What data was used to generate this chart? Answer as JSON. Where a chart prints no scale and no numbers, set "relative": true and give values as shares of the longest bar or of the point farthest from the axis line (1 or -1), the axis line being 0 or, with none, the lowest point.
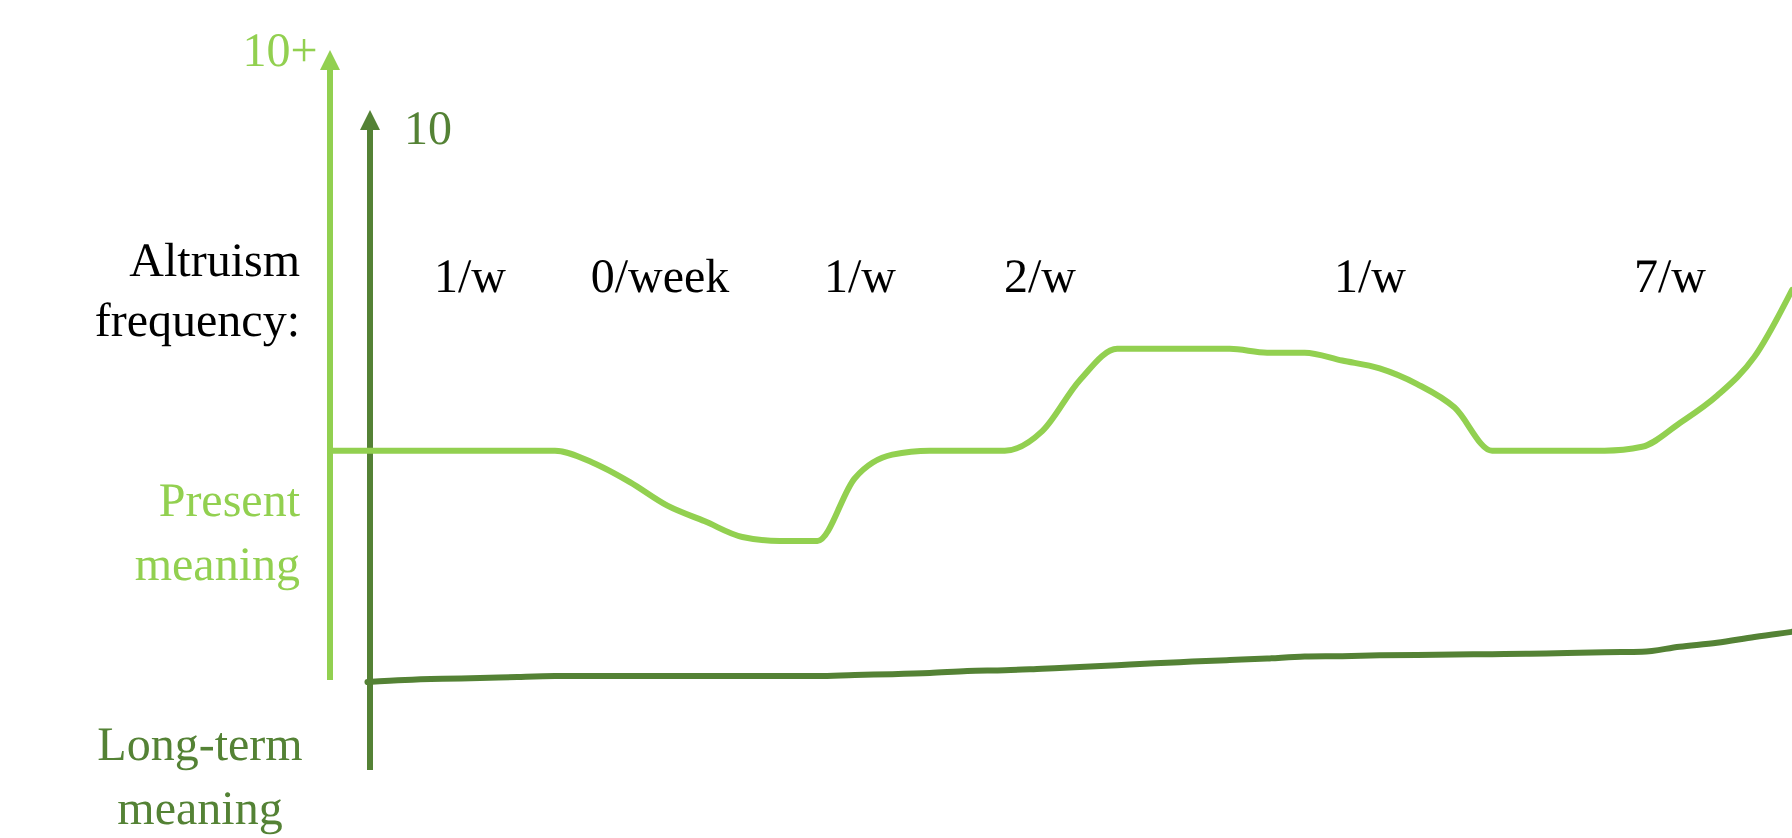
{
  "chart_data": {
    "type": "line",
    "relative": true,
    "categories": [
      null,
      null,
      null,
      null,
      null,
      null,
      null,
      null,
      null,
      null,
      null,
      null,
      null,
      null,
      null,
      null,
      null,
      null,
      null,
      null,
      null,
      null,
      null,
      null,
      null,
      null,
      null,
      null,
      null,
      null,
      null,
      null,
      null,
      null,
      null,
      null,
      null,
      null,
      null,
      null
    ],
    "series": [
      {
        "name": "Present meaning",
        "color": "#92d050",
        "values": [
          0.59,
          0.59,
          0.59,
          0.59,
          0.59,
          0.59,
          0.59,
          0.56,
          0.51,
          0.45,
          0.41,
          0.37,
          0.36,
          0.36,
          0.52,
          0.58,
          0.59,
          0.59,
          0.59,
          0.64,
          0.77,
          0.85,
          0.85,
          0.85,
          0.85,
          0.84,
          0.84,
          0.82,
          0.8,
          0.76,
          0.7,
          0.59,
          0.59,
          0.59,
          0.59,
          0.6,
          0.66,
          0.73,
          0.83,
          1
        ]
      },
      {
        "name": "Long-term meaning",
        "color": "#548235",
        "values": [
          null,
          0,
          0.005,
          0.008,
          0.01,
          0.013,
          0.015,
          0.015,
          0.015,
          0.015,
          0.015,
          0.015,
          0.015,
          0.015,
          0.018,
          0.02,
          0.023,
          0.028,
          0.03,
          0.034,
          0.038,
          0.043,
          0.048,
          0.052,
          0.056,
          0.06,
          0.065,
          0.066,
          0.068,
          0.069,
          0.07,
          0.071,
          0.072,
          0.074,
          0.076,
          0.077,
          0.09,
          0.1,
          0.115,
          0.128
        ]
      }
    ],
    "annotations": [
      "10+",
      "10",
      "Altruism frequency:",
      "1/w",
      "0/week",
      "1/w",
      "2/w",
      "1/w",
      "7/w"
    ]
  }
}
